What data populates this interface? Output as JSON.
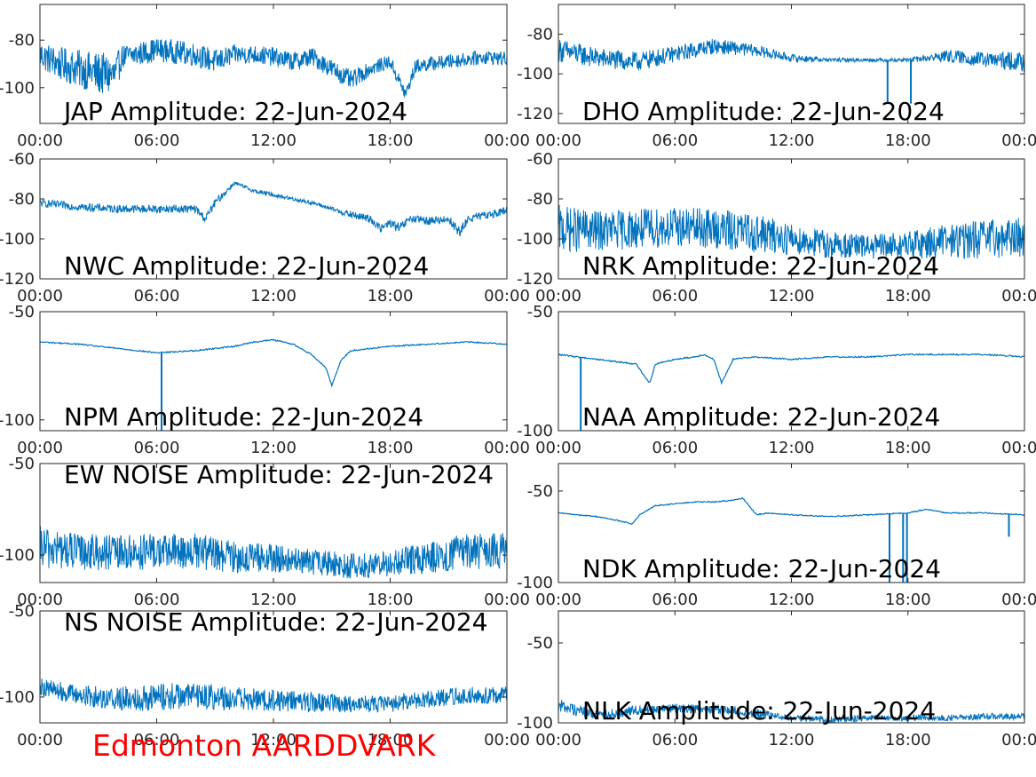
{
  "footer": {
    "title": "Edmonton AARDDVARK"
  },
  "colors": {
    "series": "#0072bd",
    "axes": "#262626",
    "footer": "#ff0000"
  },
  "chart_data": [
    {
      "type": "line",
      "title": "JAP Amplitude: 22-Jun-2024",
      "x_ticks": [
        "00:00",
        "06:00",
        "12:00",
        "18:00",
        "00:00"
      ],
      "y_ticks": [
        -80,
        -100
      ],
      "ylim": [
        -115,
        -65
      ],
      "noisy": true,
      "series": [
        {
          "x": [
            0,
            1,
            2,
            3,
            3.9,
            4.2,
            5,
            6,
            7,
            8,
            9,
            10,
            11,
            12,
            13,
            14,
            15,
            16,
            17,
            18,
            18.8,
            19.3,
            20,
            21,
            22,
            23,
            24
          ],
          "y": [
            -86,
            -90,
            -92,
            -94,
            -95,
            -87,
            -86,
            -84,
            -85,
            -86,
            -89,
            -86,
            -86,
            -87,
            -89,
            -87,
            -92,
            -97,
            -92,
            -89,
            -103,
            -91,
            -90,
            -89,
            -88,
            -87,
            -88
          ],
          "amp": [
            6,
            7,
            8,
            9,
            9,
            5,
            5,
            5,
            5,
            5,
            5,
            4,
            4,
            4,
            4,
            4,
            4,
            4,
            3,
            3,
            3,
            3,
            3,
            3,
            3,
            3,
            3
          ]
        }
      ]
    },
    {
      "type": "line",
      "title": "DHO Amplitude: 22-Jun-2024",
      "x_ticks": [
        "00:00",
        "06:00",
        "12:00",
        "18:00",
        "00:00"
      ],
      "y_ticks": [
        -80,
        -100,
        -120
      ],
      "ylim": [
        -125,
        -65
      ],
      "noisy": true,
      "series": [
        {
          "x": [
            0,
            2,
            4,
            6,
            8,
            10,
            12,
            14,
            16,
            18,
            20,
            22,
            24
          ],
          "y": [
            -88,
            -92,
            -94,
            -90,
            -86,
            -88,
            -92,
            -93,
            -93,
            -93,
            -91,
            -93,
            -94
          ],
          "amp": [
            6,
            5,
            5,
            4,
            4,
            3,
            2,
            1,
            1,
            1,
            3,
            4,
            5
          ]
        }
      ],
      "spikes": [
        {
          "x": 16.95,
          "y": -115
        },
        {
          "x": 18.15,
          "y": -115
        }
      ]
    },
    {
      "type": "line",
      "title": "NWC Amplitude: 22-Jun-2024",
      "x_ticks": [
        "00:00",
        "06:00",
        "12:00",
        "18:00",
        "00:00"
      ],
      "y_ticks": [
        -60,
        -80,
        -100,
        -120
      ],
      "ylim": [
        -120,
        -60
      ],
      "noisy": true,
      "series": [
        {
          "x": [
            0,
            2,
            4,
            6,
            8,
            8.5,
            9,
            10,
            11,
            12,
            13,
            14,
            15,
            16,
            17,
            17.5,
            18,
            18.5,
            19,
            20,
            21,
            21.6,
            22,
            23,
            24
          ],
          "y": [
            -82,
            -84,
            -85,
            -85,
            -85,
            -90,
            -82,
            -72,
            -76,
            -78,
            -80,
            -82,
            -85,
            -88,
            -90,
            -95,
            -92,
            -95,
            -90,
            -91,
            -90,
            -97,
            -90,
            -88,
            -86
          ],
          "amp": [
            2,
            2,
            2,
            2,
            2,
            2,
            2,
            1,
            1,
            1,
            1,
            1,
            1,
            2,
            2,
            2,
            2,
            3,
            2,
            2,
            2,
            3,
            2,
            2,
            2
          ]
        }
      ]
    },
    {
      "type": "line",
      "title": "NRK Amplitude: 22-Jun-2024",
      "x_ticks": [
        "00:00",
        "06:00",
        "12:00",
        "18:00",
        "00:00"
      ],
      "y_ticks": [
        -60,
        -80,
        -100,
        -120
      ],
      "ylim": [
        -120,
        -60
      ],
      "noisy": true,
      "series": [
        {
          "x": [
            0,
            2,
            4,
            6,
            8,
            10,
            12,
            14,
            16,
            18,
            20,
            22,
            24
          ],
          "y": [
            -95,
            -96,
            -95,
            -94,
            -95,
            -97,
            -100,
            -103,
            -104,
            -103,
            -101,
            -100,
            -99
          ],
          "amp": [
            12,
            10,
            10,
            10,
            10,
            10,
            8,
            7,
            6,
            7,
            9,
            10,
            10
          ]
        }
      ]
    },
    {
      "type": "line",
      "title": "NPM Amplitude: 22-Jun-2024",
      "x_ticks": [
        "00:00",
        "06:00",
        "12:00",
        "18:00",
        "00:00"
      ],
      "y_ticks": [
        -50,
        -100
      ],
      "ylim": [
        -105,
        -50
      ],
      "noisy": false,
      "series": [
        {
          "x": [
            0,
            2,
            4,
            6,
            8,
            10,
            11,
            12,
            12.5,
            13,
            14,
            14.7,
            15,
            15.5,
            16,
            18,
            20,
            22,
            24
          ],
          "y": [
            -64,
            -65,
            -67,
            -69,
            -68,
            -66,
            -64,
            -63,
            -64,
            -65,
            -70,
            -76,
            -84,
            -72,
            -68,
            -66,
            -65,
            -64,
            -65
          ],
          "amp": [
            1,
            1,
            1,
            1,
            1,
            1,
            1,
            1,
            1,
            1,
            1,
            1,
            1,
            1,
            1,
            1,
            1,
            1,
            1
          ]
        }
      ],
      "spikes": [
        {
          "x": 6.25,
          "y": -105
        }
      ]
    },
    {
      "type": "line",
      "title": "NAA Amplitude: 22-Jun-2024",
      "x_ticks": [
        "00:00",
        "06:00",
        "12:00",
        "18:00",
        "00:00"
      ],
      "y_ticks": [
        -50,
        -100
      ],
      "ylim": [
        -100,
        -50
      ],
      "noisy": false,
      "series": [
        {
          "x": [
            0,
            1,
            2,
            3,
            4,
            4.7,
            5,
            6,
            7,
            7.5,
            8,
            8.4,
            9,
            10,
            12,
            14,
            16,
            18,
            20,
            22,
            24
          ],
          "y": [
            -68,
            -69,
            -70,
            -71,
            -72,
            -80,
            -72,
            -70,
            -69,
            -68,
            -70,
            -80,
            -70,
            -69,
            -70,
            -69,
            -69,
            -68,
            -68,
            -68,
            -69
          ],
          "amp": [
            1,
            1,
            1,
            1,
            1,
            1,
            1,
            1,
            1,
            1,
            1,
            1,
            1,
            1,
            1,
            1,
            1,
            1,
            1,
            1,
            1
          ]
        }
      ],
      "spikes": [
        {
          "x": 1.15,
          "y": -100
        }
      ]
    },
    {
      "type": "line",
      "title": "EW NOISE Amplitude: 22-Jun-2024",
      "x_ticks": [
        "00:00",
        "06:00",
        "12:00",
        "18:00",
        "00:00"
      ],
      "y_ticks": [
        -50,
        -100
      ],
      "ylim": [
        -115,
        -50
      ],
      "noisy": true,
      "series": [
        {
          "x": [
            0,
            2,
            4,
            6,
            8,
            10,
            12,
            14,
            16,
            18,
            20,
            22,
            24
          ],
          "y": [
            -96,
            -98,
            -99,
            -98,
            -98,
            -101,
            -102,
            -104,
            -106,
            -105,
            -101,
            -98,
            -98
          ],
          "amp": [
            12,
            10,
            10,
            10,
            10,
            9,
            8,
            7,
            7,
            7,
            9,
            10,
            10
          ]
        }
      ]
    },
    {
      "type": "line",
      "title": "NDK Amplitude: 22-Jun-2024",
      "x_ticks": [
        "00:00",
        "06:00",
        "12:00",
        "18:00",
        "00:00"
      ],
      "y_ticks": [
        -50,
        -100
      ],
      "ylim": [
        -100,
        -35
      ],
      "noisy": false,
      "series": [
        {
          "x": [
            0,
            1,
            2,
            3,
            3.8,
            4.2,
            5,
            6,
            7,
            8,
            9,
            9.5,
            10.2,
            10.8,
            12,
            14,
            16,
            18,
            19,
            20,
            22,
            24
          ],
          "y": [
            -62,
            -63,
            -64,
            -66,
            -68,
            -63,
            -58,
            -57,
            -56,
            -56,
            -55,
            -54,
            -63,
            -62,
            -63,
            -64,
            -63,
            -62,
            -60,
            -62,
            -62,
            -63
          ],
          "amp": [
            1,
            1,
            1,
            1,
            1,
            1,
            1,
            1,
            1,
            1,
            1,
            1,
            1,
            1,
            1,
            1,
            1,
            1,
            1,
            1,
            1,
            1
          ]
        }
      ],
      "spikes": [
        {
          "x": 17.05,
          "y": -100
        },
        {
          "x": 17.75,
          "y": -100
        },
        {
          "x": 17.95,
          "y": -100
        },
        {
          "x": 23.2,
          "y": -75
        }
      ]
    },
    {
      "type": "line",
      "title": "NS NOISE Amplitude: 22-Jun-2024",
      "x_ticks": [
        "00:00",
        "06:00",
        "12:00",
        "18:00",
        "00:00"
      ],
      "y_ticks": [
        -50,
        -100
      ],
      "ylim": [
        -115,
        -50
      ],
      "noisy": true,
      "series": [
        {
          "x": [
            0,
            2,
            4,
            6,
            8,
            10,
            12,
            14,
            16,
            18,
            20,
            22,
            24
          ],
          "y": [
            -94,
            -99,
            -101,
            -100,
            -99,
            -101,
            -102,
            -103,
            -104,
            -104,
            -101,
            -99,
            -99
          ],
          "amp": [
            5,
            6,
            7,
            8,
            8,
            7,
            6,
            6,
            5,
            5,
            5,
            5,
            5
          ]
        }
      ]
    },
    {
      "type": "line",
      "title": "NLK Amplitude: 22-Jun-2024",
      "x_ticks": [
        "00:00",
        "06:00",
        "12:00",
        "18:00",
        "00:00"
      ],
      "y_ticks": [
        -50,
        -100
      ],
      "ylim": [
        -100,
        -30
      ],
      "noisy": true,
      "series": [
        {
          "x": [
            0,
            1,
            2,
            3,
            4,
            6,
            8,
            10,
            12,
            14,
            16,
            18,
            20,
            22,
            24
          ],
          "y": [
            -89,
            -92,
            -95,
            -94,
            -92,
            -91,
            -91,
            -94,
            -97,
            -98,
            -97,
            -97,
            -97,
            -96,
            -96
          ],
          "amp": [
            4,
            4,
            3,
            3,
            3,
            3,
            3,
            3,
            2,
            2,
            2,
            2,
            2,
            2,
            2
          ]
        }
      ]
    }
  ]
}
